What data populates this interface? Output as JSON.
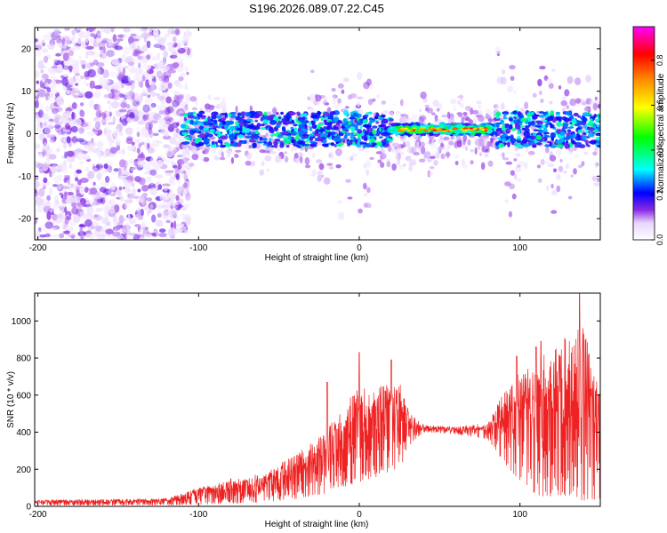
{
  "title": "S196.2026.089.07.22.C45",
  "colors": {
    "spectral_cmap": [
      "#ffffff",
      "#8a2be2",
      "#0000ff",
      "#00ffff",
      "#00ff00",
      "#ffff00",
      "#ff8c00",
      "#ff0000",
      "#ff00ff"
    ],
    "snr_line": "#ee2222"
  },
  "chart_data": [
    {
      "type": "heatmap",
      "xlabel": "Height of straight line (km)",
      "ylabel": "Frequency (Hz)",
      "xlim": [
        -202,
        150
      ],
      "ylim": [
        -25,
        25
      ],
      "x_ticks": [
        -200,
        -100,
        0,
        100
      ],
      "y_ticks": [
        -20,
        -10,
        0,
        10,
        20
      ],
      "colorbar": {
        "label": "Normalized spectral amplitude",
        "range": [
          0,
          0.95
        ],
        "ticks": [
          0.0,
          0.2,
          0.4,
          0.6,
          0.8
        ]
      }
    },
    {
      "type": "line",
      "xlabel": "Height of straight line (km)",
      "ylabel": "SNR (10 * v/v)",
      "xlim": [
        -202,
        150
      ],
      "ylim": [
        0,
        1150
      ],
      "x_ticks": [
        -200,
        -100,
        0,
        100
      ],
      "y_ticks": [
        0,
        200,
        400,
        600,
        800,
        1000
      ],
      "envelope": {
        "x": [
          -202,
          -150,
          -120,
          -100,
          -80,
          -60,
          -40,
          -20,
          0,
          15,
          25,
          32,
          40,
          60,
          80,
          95,
          110,
          125,
          140,
          150
        ],
        "lower": [
          5,
          5,
          5,
          10,
          15,
          20,
          40,
          70,
          130,
          170,
          200,
          330,
          400,
          390,
          360,
          180,
          60,
          40,
          30,
          40
        ],
        "upper": [
          35,
          40,
          45,
          100,
          150,
          180,
          280,
          420,
          650,
          650,
          720,
          500,
          440,
          430,
          450,
          700,
          800,
          900,
          1000,
          600
        ]
      },
      "peaks": [
        [
          -20,
          670
        ],
        [
          0,
          830
        ],
        [
          20,
          790
        ],
        [
          98,
          810
        ],
        [
          110,
          860
        ],
        [
          113,
          890
        ],
        [
          125,
          810
        ],
        [
          137,
          1150
        ]
      ]
    }
  ]
}
